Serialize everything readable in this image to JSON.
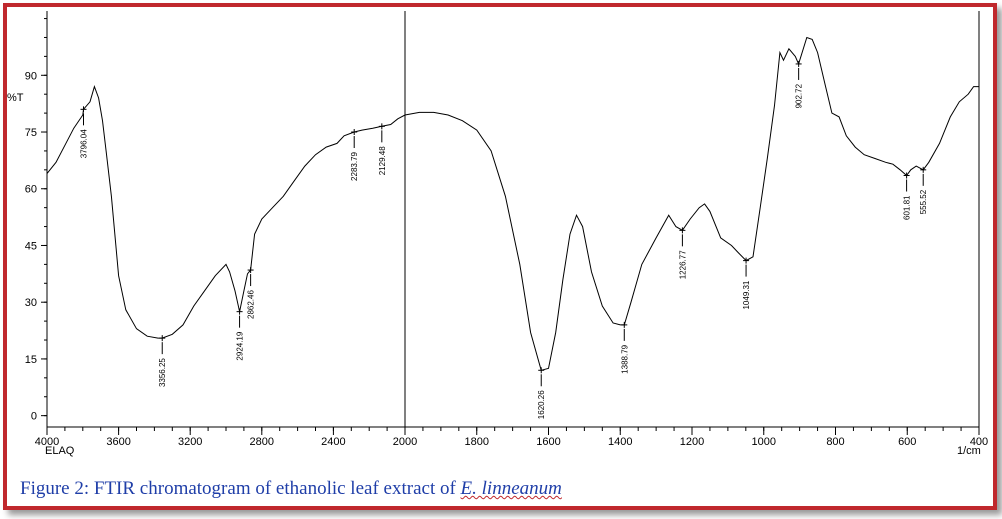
{
  "figure": {
    "caption_prefix": "Figure 2: FTIR chromatogram of ethanolic leaf extract of ",
    "caption_species": "E. linneanum",
    "border_color": "#c0282d",
    "caption_color": "#1f3ea8"
  },
  "chart_data": {
    "type": "line",
    "title": "",
    "xlabel": "1/cm",
    "ylabel": "%T",
    "sample_label": "ELAQ",
    "x_scale": "split at 2000 1/cm (reversed axis)",
    "xlim": [
      4000,
      400
    ],
    "ylim": [
      -3,
      107
    ],
    "x_ticks": [
      4000,
      3600,
      3200,
      2800,
      2400,
      2000,
      1800,
      1600,
      1400,
      1200,
      1000,
      800,
      600,
      400
    ],
    "y_ticks": [
      0,
      15,
      30,
      45,
      60,
      75,
      90
    ],
    "grid": false,
    "series": [
      {
        "points": [
          [
            4000,
            64
          ],
          [
            3950,
            67
          ],
          [
            3900,
            71.5
          ],
          [
            3850,
            76
          ],
          [
            3800,
            79.5
          ],
          [
            3796.04,
            81
          ],
          [
            3760,
            83
          ],
          [
            3735,
            87
          ],
          [
            3712,
            84
          ],
          [
            3690,
            78
          ],
          [
            3670,
            70
          ],
          [
            3640,
            58
          ],
          [
            3600,
            37
          ],
          [
            3560,
            28
          ],
          [
            3500,
            23
          ],
          [
            3440,
            21
          ],
          [
            3380,
            20.5
          ],
          [
            3356.25,
            20.5
          ],
          [
            3300,
            21.5
          ],
          [
            3240,
            24
          ],
          [
            3180,
            29
          ],
          [
            3120,
            33
          ],
          [
            3060,
            37
          ],
          [
            3000,
            40
          ],
          [
            2980,
            38
          ],
          [
            2950,
            33
          ],
          [
            2924.19,
            27.5
          ],
          [
            2900,
            33
          ],
          [
            2880,
            37.5
          ],
          [
            2862.46,
            38.5
          ],
          [
            2840,
            48
          ],
          [
            2800,
            52
          ],
          [
            2740,
            55
          ],
          [
            2680,
            58
          ],
          [
            2620,
            62
          ],
          [
            2560,
            66
          ],
          [
            2500,
            69
          ],
          [
            2440,
            71
          ],
          [
            2380,
            72
          ],
          [
            2340,
            74
          ],
          [
            2283.79,
            75
          ],
          [
            2240,
            75.5
          ],
          [
            2180,
            76
          ],
          [
            2129.48,
            76.5
          ],
          [
            2080,
            77
          ],
          [
            2040,
            78.5
          ],
          [
            2000,
            79.5
          ],
          [
            1960,
            80.2
          ],
          [
            1940,
            80.2
          ],
          [
            1920,
            80.2
          ],
          [
            1880,
            79.5
          ],
          [
            1840,
            78
          ],
          [
            1800,
            75.5
          ],
          [
            1760,
            70
          ],
          [
            1720,
            58
          ],
          [
            1680,
            40
          ],
          [
            1650,
            22
          ],
          [
            1620.26,
            12
          ],
          [
            1600,
            12.5
          ],
          [
            1580,
            22
          ],
          [
            1560,
            36
          ],
          [
            1540,
            48
          ],
          [
            1522,
            53
          ],
          [
            1505,
            50
          ],
          [
            1480,
            38
          ],
          [
            1450,
            29
          ],
          [
            1420,
            24.5
          ],
          [
            1400,
            24
          ],
          [
            1388.79,
            24
          ],
          [
            1370,
            30
          ],
          [
            1340,
            40
          ],
          [
            1300,
            47
          ],
          [
            1265,
            53
          ],
          [
            1245,
            50
          ],
          [
            1226.77,
            49
          ],
          [
            1205,
            52
          ],
          [
            1180,
            55
          ],
          [
            1165,
            56
          ],
          [
            1150,
            54
          ],
          [
            1120,
            47
          ],
          [
            1090,
            45
          ],
          [
            1070,
            43
          ],
          [
            1049.31,
            41
          ],
          [
            1030,
            42
          ],
          [
            1010,
            55
          ],
          [
            990,
            68
          ],
          [
            970,
            82
          ],
          [
            955,
            96
          ],
          [
            945,
            94
          ],
          [
            930,
            97
          ],
          [
            912,
            95
          ],
          [
            902.72,
            93
          ],
          [
            880,
            100
          ],
          [
            865,
            99.5
          ],
          [
            850,
            96
          ],
          [
            830,
            88
          ],
          [
            810,
            80
          ],
          [
            790,
            79
          ],
          [
            770,
            74
          ],
          [
            745,
            71
          ],
          [
            720,
            69
          ],
          [
            690,
            68
          ],
          [
            660,
            67
          ],
          [
            640,
            66.5
          ],
          [
            620,
            65
          ],
          [
            601.81,
            63.5
          ],
          [
            590,
            65
          ],
          [
            575,
            66
          ],
          [
            555.52,
            65
          ],
          [
            540,
            67
          ],
          [
            510,
            72
          ],
          [
            480,
            79
          ],
          [
            455,
            83
          ],
          [
            430,
            85
          ],
          [
            415,
            87
          ],
          [
            400,
            87
          ]
        ]
      }
    ],
    "peak_labels": [
      {
        "x": 3796.04,
        "label": "3796.04"
      },
      {
        "x": 3356.25,
        "label": "3356.25"
      },
      {
        "x": 2924.19,
        "label": "2924.19"
      },
      {
        "x": 2862.46,
        "label": "2862.46"
      },
      {
        "x": 2283.79,
        "label": "2283.79"
      },
      {
        "x": 2129.48,
        "label": "2129.48"
      },
      {
        "x": 1620.26,
        "label": "1620.26"
      },
      {
        "x": 1388.79,
        "label": "1388.79"
      },
      {
        "x": 1226.77,
        "label": "1226.77"
      },
      {
        "x": 1049.31,
        "label": "1049.31"
      },
      {
        "x": 902.72,
        "label": "902.72"
      },
      {
        "x": 601.81,
        "label": "601.81"
      },
      {
        "x": 555.52,
        "label": "555.52"
      }
    ]
  }
}
